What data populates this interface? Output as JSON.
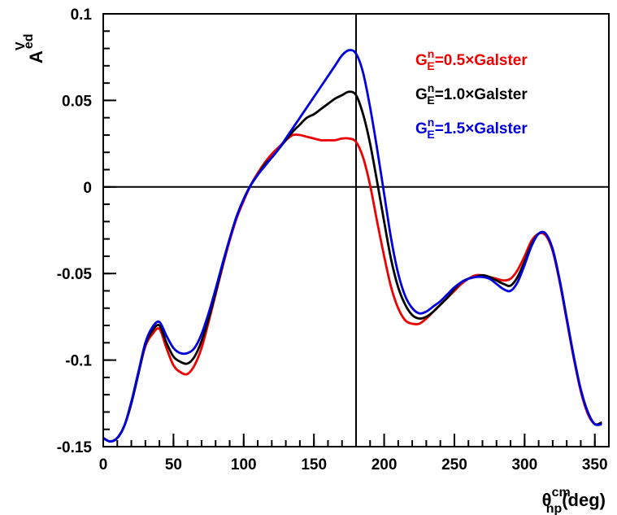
{
  "chart_data": {
    "type": "line",
    "xlabel": {
      "main": "θ",
      "sub": "np",
      "sup": "cm",
      "suffix": "(deg)"
    },
    "ylabel": {
      "main": "A",
      "sub": "ed",
      "sup": "V"
    },
    "xlim": [
      0,
      360
    ],
    "ylim": [
      -0.15,
      0.1
    ],
    "x_ticks": [
      0,
      50,
      100,
      150,
      200,
      250,
      300,
      350
    ],
    "x_tick_labels": [
      "0",
      "50",
      "100",
      "150",
      "200",
      "250",
      "300",
      "350"
    ],
    "y_ticks": [
      -0.15,
      -0.1,
      -0.05,
      0,
      0.05,
      0.1
    ],
    "y_tick_labels": [
      "-0.15",
      "-0.1",
      "-0.05",
      "0",
      "0.05",
      "0.1"
    ],
    "reference_lines": {
      "x": 180,
      "y": 0
    },
    "legend_position": "top-right",
    "series": [
      {
        "name": {
          "main": "G",
          "sup": "n",
          "sub": "E",
          "rest": "=0.5×Galster"
        },
        "color": "#ee0000",
        "x": [
          0,
          5,
          10,
          15,
          20,
          25,
          30,
          35,
          40,
          45,
          50,
          55,
          60,
          65,
          70,
          75,
          80,
          85,
          90,
          95,
          100,
          105,
          110,
          115,
          120,
          125,
          130,
          135,
          140,
          145,
          150,
          155,
          160,
          165,
          170,
          175,
          180,
          185,
          190,
          195,
          200,
          205,
          210,
          215,
          220,
          225,
          230,
          235,
          240,
          245,
          250,
          255,
          260,
          265,
          270,
          275,
          280,
          285,
          290,
          295,
          300,
          305,
          310,
          315,
          320,
          325,
          330,
          335,
          340,
          345,
          350,
          355
        ],
        "values": [
          -0.145,
          -0.147,
          -0.145,
          -0.138,
          -0.125,
          -0.108,
          -0.092,
          -0.085,
          -0.082,
          -0.093,
          -0.103,
          -0.107,
          -0.108,
          -0.103,
          -0.093,
          -0.078,
          -0.062,
          -0.046,
          -0.031,
          -0.018,
          -0.008,
          0.001,
          0.008,
          0.014,
          0.019,
          0.023,
          0.027,
          0.03,
          0.03,
          0.029,
          0.028,
          0.027,
          0.027,
          0.027,
          0.028,
          0.028,
          0.026,
          0.017,
          0.001,
          -0.02,
          -0.04,
          -0.058,
          -0.07,
          -0.077,
          -0.079,
          -0.079,
          -0.076,
          -0.072,
          -0.068,
          -0.064,
          -0.06,
          -0.056,
          -0.053,
          -0.051,
          -0.051,
          -0.052,
          -0.053,
          -0.054,
          -0.053,
          -0.048,
          -0.04,
          -0.031,
          -0.027,
          -0.028,
          -0.037,
          -0.055,
          -0.077,
          -0.099,
          -0.118,
          -0.131,
          -0.137,
          -0.136
        ]
      },
      {
        "name": {
          "main": "G",
          "sup": "n",
          "sub": "E",
          "rest": "=1.0×Galster"
        },
        "color": "#000000",
        "x": [
          0,
          5,
          10,
          15,
          20,
          25,
          30,
          35,
          40,
          45,
          50,
          55,
          60,
          65,
          70,
          75,
          80,
          85,
          90,
          95,
          100,
          105,
          110,
          115,
          120,
          125,
          130,
          135,
          140,
          145,
          150,
          155,
          160,
          165,
          170,
          175,
          180,
          185,
          190,
          195,
          200,
          205,
          210,
          215,
          220,
          225,
          230,
          235,
          240,
          245,
          250,
          255,
          260,
          265,
          270,
          275,
          280,
          285,
          290,
          295,
          300,
          305,
          310,
          315,
          320,
          325,
          330,
          335,
          340,
          345,
          350,
          355
        ],
        "values": [
          -0.145,
          -0.147,
          -0.145,
          -0.138,
          -0.125,
          -0.108,
          -0.091,
          -0.083,
          -0.08,
          -0.09,
          -0.098,
          -0.101,
          -0.102,
          -0.098,
          -0.089,
          -0.076,
          -0.061,
          -0.045,
          -0.03,
          -0.017,
          -0.007,
          0.001,
          0.007,
          0.013,
          0.017,
          0.022,
          0.027,
          0.032,
          0.036,
          0.04,
          0.042,
          0.045,
          0.048,
          0.051,
          0.053,
          0.055,
          0.053,
          0.042,
          0.025,
          0.003,
          -0.02,
          -0.042,
          -0.058,
          -0.068,
          -0.074,
          -0.076,
          -0.075,
          -0.072,
          -0.068,
          -0.064,
          -0.059,
          -0.055,
          -0.053,
          -0.052,
          -0.051,
          -0.052,
          -0.054,
          -0.056,
          -0.057,
          -0.052,
          -0.043,
          -0.033,
          -0.027,
          -0.027,
          -0.036,
          -0.054,
          -0.076,
          -0.098,
          -0.117,
          -0.13,
          -0.137,
          -0.136
        ]
      },
      {
        "name": {
          "main": "G",
          "sup": "n",
          "sub": "E",
          "rest": "=1.5×Galster"
        },
        "color": "#0000dd",
        "x": [
          0,
          5,
          10,
          15,
          20,
          25,
          30,
          35,
          40,
          45,
          50,
          55,
          60,
          65,
          70,
          75,
          80,
          85,
          90,
          95,
          100,
          105,
          110,
          115,
          120,
          125,
          130,
          135,
          140,
          145,
          150,
          155,
          160,
          165,
          170,
          175,
          180,
          185,
          190,
          195,
          200,
          205,
          210,
          215,
          220,
          225,
          230,
          235,
          240,
          245,
          250,
          255,
          260,
          265,
          270,
          275,
          280,
          285,
          290,
          295,
          300,
          305,
          310,
          315,
          320,
          325,
          330,
          335,
          340,
          345,
          350,
          355
        ],
        "values": [
          -0.145,
          -0.147,
          -0.145,
          -0.138,
          -0.124,
          -0.107,
          -0.09,
          -0.081,
          -0.078,
          -0.086,
          -0.093,
          -0.096,
          -0.096,
          -0.093,
          -0.085,
          -0.073,
          -0.059,
          -0.044,
          -0.03,
          -0.017,
          -0.007,
          0.001,
          0.007,
          0.012,
          0.017,
          0.022,
          0.028,
          0.034,
          0.04,
          0.046,
          0.052,
          0.058,
          0.064,
          0.07,
          0.076,
          0.079,
          0.077,
          0.066,
          0.046,
          0.022,
          -0.004,
          -0.03,
          -0.05,
          -0.063,
          -0.07,
          -0.073,
          -0.072,
          -0.069,
          -0.066,
          -0.062,
          -0.058,
          -0.055,
          -0.053,
          -0.052,
          -0.052,
          -0.053,
          -0.056,
          -0.059,
          -0.06,
          -0.055,
          -0.045,
          -0.034,
          -0.027,
          -0.027,
          -0.036,
          -0.054,
          -0.076,
          -0.098,
          -0.117,
          -0.13,
          -0.137,
          -0.137
        ]
      }
    ]
  }
}
